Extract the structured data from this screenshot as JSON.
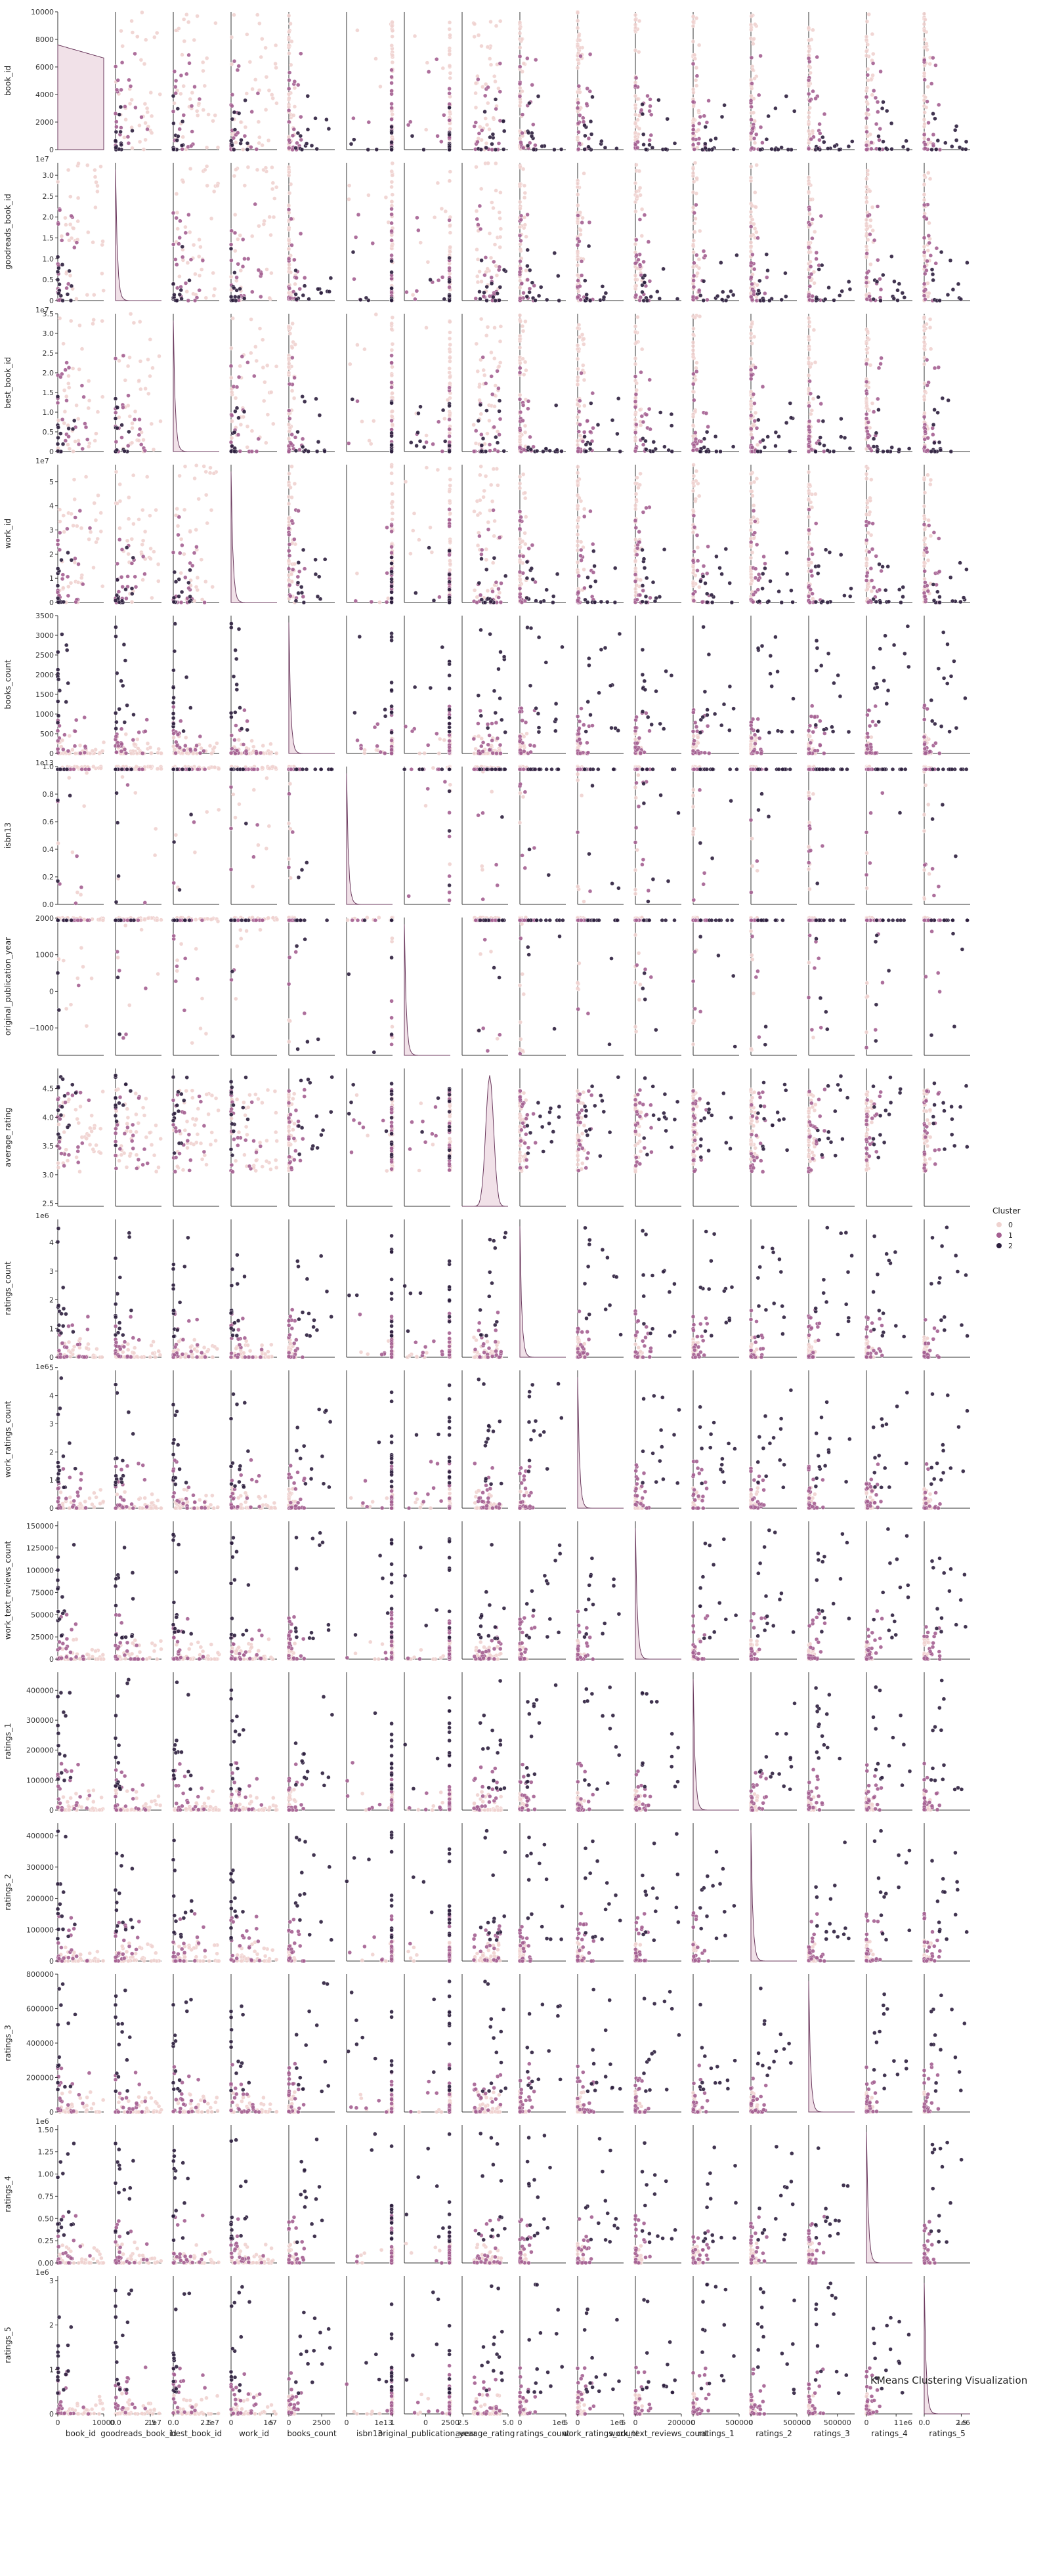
{
  "chart_data": {
    "type": "scatter",
    "title": "KMeans Clustering Visualization",
    "grid": false,
    "legend": {
      "title": "Cluster",
      "placement": "right",
      "entries": [
        {
          "label": "0",
          "color": "#efd2cf"
        },
        {
          "label": "1",
          "color": "#a45f91"
        },
        {
          "label": "2",
          "color": "#2c1e3d"
        }
      ]
    },
    "variables": [
      {
        "name": "book_id",
        "range": [
          0,
          10000
        ],
        "exponent": "",
        "y_ticks": [
          {
            "v": 0,
            "t": "0"
          },
          {
            "v": 2000,
            "t": "2000"
          },
          {
            "v": 4000,
            "t": "4000"
          },
          {
            "v": 6000,
            "t": "6000"
          },
          {
            "v": 8000,
            "t": "8000"
          },
          {
            "v": 10000,
            "t": "10000"
          }
        ],
        "x_ticks": [
          {
            "v": 0,
            "t": "0"
          },
          {
            "v": 10000,
            "t": "10000"
          }
        ]
      },
      {
        "name": "goodreads_book_id",
        "range": [
          0,
          3.3
        ],
        "exponent": "1e7",
        "y_ticks": [
          {
            "v": 0,
            "t": "0"
          },
          {
            "v": 0.5,
            "t": "0.5"
          },
          {
            "v": 1,
            "t": "1.0"
          },
          {
            "v": 1.5,
            "t": "1.5"
          },
          {
            "v": 2,
            "t": "2.0"
          },
          {
            "v": 2.5,
            "t": "2.5"
          },
          {
            "v": 3,
            "t": "3.0"
          }
        ],
        "x_ticks": [
          {
            "v": 0,
            "t": "0.0"
          },
          {
            "v": 2.5,
            "t": "2.5"
          }
        ]
      },
      {
        "name": "best_book_id",
        "range": [
          0,
          3.5
        ],
        "exponent": "1e7",
        "y_ticks": [
          {
            "v": 0,
            "t": "0"
          },
          {
            "v": 0.5,
            "t": "0.5"
          },
          {
            "v": 1,
            "t": "1.0"
          },
          {
            "v": 1.5,
            "t": "1.5"
          },
          {
            "v": 2,
            "t": "2.0"
          },
          {
            "v": 2.5,
            "t": "2.5"
          },
          {
            "v": 3,
            "t": "3.0"
          },
          {
            "v": 3.5,
            "t": "3.5"
          }
        ],
        "x_ticks": [
          {
            "v": 0,
            "t": "0.0"
          },
          {
            "v": 2.5,
            "t": "2.5"
          }
        ]
      },
      {
        "name": "work_id",
        "range": [
          0,
          5.7
        ],
        "exponent": "1e7",
        "y_ticks": [
          {
            "v": 0,
            "t": "0"
          },
          {
            "v": 1,
            "t": "1"
          },
          {
            "v": 2,
            "t": "2"
          },
          {
            "v": 3,
            "t": "3"
          },
          {
            "v": 4,
            "t": "4"
          },
          {
            "v": 5,
            "t": "5"
          }
        ],
        "x_ticks": [
          {
            "v": 0,
            "t": "0"
          },
          {
            "v": 5,
            "t": "5"
          }
        ]
      },
      {
        "name": "books_count",
        "range": [
          0,
          3500
        ],
        "exponent": "",
        "y_ticks": [
          {
            "v": 0,
            "t": "0"
          },
          {
            "v": 500,
            "t": "500"
          },
          {
            "v": 1000,
            "t": "1000"
          },
          {
            "v": 1500,
            "t": "1500"
          },
          {
            "v": 2000,
            "t": "2000"
          },
          {
            "v": 2500,
            "t": "2500"
          },
          {
            "v": 3000,
            "t": "3000"
          },
          {
            "v": 3500,
            "t": "3500"
          }
        ],
        "x_ticks": [
          {
            "v": 0,
            "t": "0"
          },
          {
            "v": 2500,
            "t": "2500"
          }
        ]
      },
      {
        "name": "isbn13",
        "range": [
          0,
          1.0
        ],
        "exponent": "1e13",
        "y_ticks": [
          {
            "v": 0,
            "t": "0.0"
          },
          {
            "v": 0.2,
            "t": "0.2"
          },
          {
            "v": 0.4,
            "t": "0.4"
          },
          {
            "v": 0.6,
            "t": "0.6"
          },
          {
            "v": 0.8,
            "t": "0.8"
          },
          {
            "v": 1,
            "t": "1.0"
          }
        ],
        "x_ticks": [
          {
            "v": 0,
            "t": "0"
          },
          {
            "v": 1,
            "t": "1"
          }
        ]
      },
      {
        "name": "original_publication_year",
        "range": [
          -1750,
          2017
        ],
        "exponent": "",
        "y_ticks": [
          {
            "v": -1000,
            "t": "−1000"
          },
          {
            "v": 0,
            "t": "0"
          },
          {
            "v": 1000,
            "t": "1000"
          },
          {
            "v": 2000,
            "t": "2000"
          }
        ],
        "x_ticks": [
          {
            "v": 0,
            "t": "0"
          },
          {
            "v": 2500,
            "t": "2500"
          }
        ]
      },
      {
        "name": "average_rating",
        "range": [
          2.45,
          4.85
        ],
        "exponent": "",
        "y_ticks": [
          {
            "v": 2.5,
            "t": "2.5"
          },
          {
            "v": 3,
            "t": "3.0"
          },
          {
            "v": 3.5,
            "t": "3.5"
          },
          {
            "v": 4,
            "t": "4.0"
          },
          {
            "v": 4.5,
            "t": "4.5"
          }
        ],
        "x_ticks": [
          {
            "v": 2.5,
            "t": "2.5"
          },
          {
            "v": 5,
            "t": "5.0"
          }
        ]
      },
      {
        "name": "ratings_count",
        "range": [
          0,
          4.8
        ],
        "exponent": "1e6",
        "y_ticks": [
          {
            "v": 0,
            "t": "0"
          },
          {
            "v": 1,
            "t": "1"
          },
          {
            "v": 2,
            "t": "2"
          },
          {
            "v": 3,
            "t": "3"
          },
          {
            "v": 4,
            "t": "4"
          }
        ],
        "x_ticks": [
          {
            "v": 0,
            "t": "0"
          },
          {
            "v": 5,
            "t": "5"
          }
        ]
      },
      {
        "name": "work_ratings_count",
        "range": [
          0,
          4.9
        ],
        "exponent": "1e6",
        "y_ticks": [
          {
            "v": 0,
            "t": "0"
          },
          {
            "v": 1,
            "t": "1"
          },
          {
            "v": 2,
            "t": "2"
          },
          {
            "v": 3,
            "t": "3"
          },
          {
            "v": 4,
            "t": "4"
          },
          {
            "v": 5,
            "t": "5"
          }
        ],
        "x_ticks": [
          {
            "v": 0,
            "t": "0"
          },
          {
            "v": 5,
            "t": "5"
          }
        ]
      },
      {
        "name": "work_text_reviews_count",
        "range": [
          0,
          155000
        ],
        "exponent": "",
        "y_ticks": [
          {
            "v": 0,
            "t": "0"
          },
          {
            "v": 25000,
            "t": "25000"
          },
          {
            "v": 50000,
            "t": "50000"
          },
          {
            "v": 75000,
            "t": "75000"
          },
          {
            "v": 100000,
            "t": "100000"
          },
          {
            "v": 125000,
            "t": "125000"
          },
          {
            "v": 150000,
            "t": "150000"
          }
        ],
        "x_ticks": [
          {
            "v": 0,
            "t": "0"
          },
          {
            "v": 200000,
            "t": "200000"
          }
        ]
      },
      {
        "name": "ratings_1",
        "range": [
          0,
          460000
        ],
        "exponent": "",
        "y_ticks": [
          {
            "v": 0,
            "t": "0"
          },
          {
            "v": 100000,
            "t": "100000"
          },
          {
            "v": 200000,
            "t": "200000"
          },
          {
            "v": 300000,
            "t": "300000"
          },
          {
            "v": 400000,
            "t": "400000"
          }
        ],
        "x_ticks": [
          {
            "v": 0,
            "t": "0"
          },
          {
            "v": 500000,
            "t": "500000"
          }
        ]
      },
      {
        "name": "ratings_2",
        "range": [
          0,
          440000
        ],
        "exponent": "",
        "y_ticks": [
          {
            "v": 0,
            "t": "0"
          },
          {
            "v": 100000,
            "t": "100000"
          },
          {
            "v": 200000,
            "t": "200000"
          },
          {
            "v": 300000,
            "t": "300000"
          },
          {
            "v": 400000,
            "t": "400000"
          }
        ],
        "x_ticks": [
          {
            "v": 0,
            "t": "0"
          },
          {
            "v": 500000,
            "t": "500000"
          }
        ]
      },
      {
        "name": "ratings_3",
        "range": [
          0,
          800000
        ],
        "exponent": "",
        "y_ticks": [
          {
            "v": 0,
            "t": "0"
          },
          {
            "v": 200000,
            "t": "200000"
          },
          {
            "v": 400000,
            "t": "400000"
          },
          {
            "v": 600000,
            "t": "600000"
          },
          {
            "v": 800000,
            "t": "800000"
          }
        ],
        "x_ticks": [
          {
            "v": 0,
            "t": "0"
          },
          {
            "v": 500000,
            "t": "500000"
          }
        ]
      },
      {
        "name": "ratings_4",
        "range": [
          0,
          1.55
        ],
        "exponent": "1e6",
        "y_ticks": [
          {
            "v": 0,
            "t": "0.00"
          },
          {
            "v": 0.25,
            "t": "0.25"
          },
          {
            "v": 0.5,
            "t": "0.50"
          },
          {
            "v": 0.75,
            "t": "0.75"
          },
          {
            "v": 1,
            "t": "1.00"
          },
          {
            "v": 1.25,
            "t": "1.25"
          },
          {
            "v": 1.5,
            "t": "1.50"
          }
        ],
        "x_ticks": [
          {
            "v": 0,
            "t": "0"
          },
          {
            "v": 1,
            "t": "1"
          }
        ]
      },
      {
        "name": "ratings_5",
        "range": [
          0,
          3.1
        ],
        "exponent": "1e6",
        "y_ticks": [
          {
            "v": 0,
            "t": "0"
          },
          {
            "v": 1,
            "t": "1"
          },
          {
            "v": 2,
            "t": "2"
          },
          {
            "v": 3,
            "t": "3"
          }
        ],
        "x_ticks": [
          {
            "v": 0,
            "t": "0.0"
          },
          {
            "v": 2.5,
            "t": "2.5"
          }
        ]
      }
    ]
  }
}
